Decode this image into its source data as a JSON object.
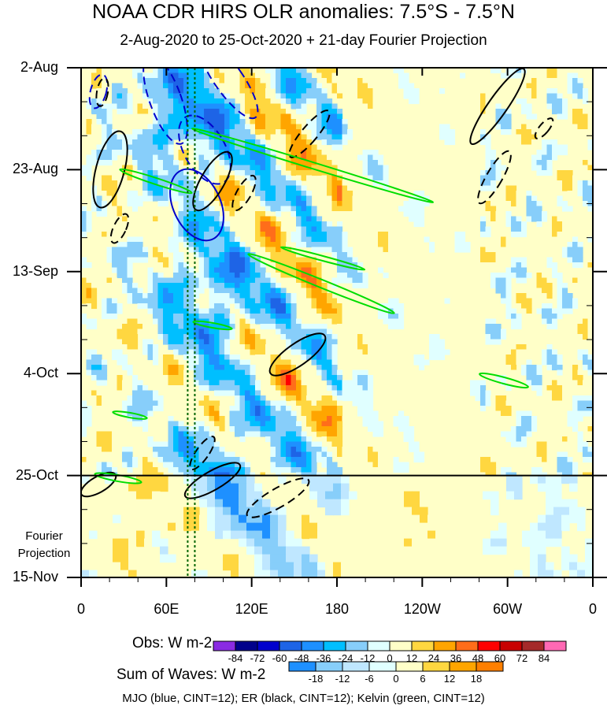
{
  "chart_data": {
    "type": "heatmap",
    "title": "NOAA CDR HIRS OLR anomalies: 7.5°S - 7.5°N",
    "subtitle": "2-Aug-2020 to 25-Oct-2020 + 21-day Fourier Projection",
    "y_axis": {
      "tick_labels": [
        "2-Aug",
        "23-Aug",
        "13-Sep",
        "4-Oct",
        "25-Oct",
        "15-Nov"
      ],
      "range": [
        "2-Aug-2020",
        "15-Nov-2020"
      ],
      "projection_start": "25-Oct-2020",
      "projection_label": "Fourier Projection",
      "direction": "time increases downward"
    },
    "x_axis": {
      "tick_labels": [
        "0",
        "60E",
        "120E",
        "180",
        "120W",
        "60W",
        "0"
      ],
      "range_deg_east": [
        0,
        360
      ]
    },
    "colorbar_obs": {
      "label": "Obs: W m-2",
      "ticks": [
        "-84",
        "-72",
        "-60",
        "-48",
        "-36",
        "-24",
        "-12",
        "0",
        "12",
        "24",
        "36",
        "48",
        "60",
        "72",
        "84"
      ],
      "colors": [
        "#8a2be2",
        "#00008b",
        "#0000cd",
        "#1e64e6",
        "#1e90ff",
        "#00bfff",
        "#87cefa",
        "#e0ffff",
        "#ffffc8",
        "#ffd740",
        "#ffa500",
        "#ff6d1a",
        "#ff0000",
        "#c80000",
        "#a52a2a",
        "#ff69b4"
      ]
    },
    "colorbar_waves": {
      "label": "Sum of Waves: W m-2",
      "ticks": [
        "-18",
        "-12",
        "-6",
        "0",
        "6",
        "12",
        "18"
      ],
      "colors": [
        "#1e90ff",
        "#87cefa",
        "#bfe7ff",
        "#e0ffff",
        "#ffffc8",
        "#ffd740",
        "#ffa500",
        "#ff7f00"
      ]
    },
    "contour_footnote": "MJO (blue, CINT=12); ER (black, CINT=12); Kelvin (green, CINT=12)",
    "contour_series": [
      {
        "name": "MJO",
        "color": "#0000cc",
        "cint": 12
      },
      {
        "name": "ER",
        "color": "#000000",
        "cint": 12
      },
      {
        "name": "Kelvin",
        "color": "#00dd00",
        "cint": 12
      }
    ],
    "reference_lines": {
      "type": "dotted vertical",
      "color": "#006400",
      "longitudes_deg_east": [
        75,
        80
      ]
    },
    "grid": false
  }
}
